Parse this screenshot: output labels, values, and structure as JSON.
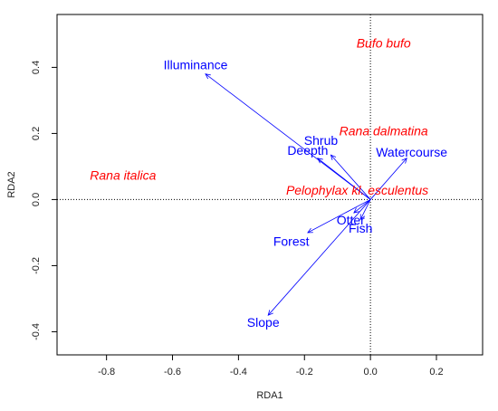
{
  "chart_data": {
    "type": "scatter",
    "subtype": "rda-biplot",
    "xlabel": "RDA1",
    "ylabel": "RDA2",
    "xlim": [
      -0.95,
      0.34
    ],
    "ylim": [
      -0.47,
      0.56
    ],
    "x_ticks": [
      {
        "value": -0.8,
        "label": "-0.8"
      },
      {
        "value": -0.6,
        "label": "-0.6"
      },
      {
        "value": -0.4,
        "label": "-0.4"
      },
      {
        "value": -0.2,
        "label": "-0.2"
      },
      {
        "value": 0.0,
        "label": "0.0"
      },
      {
        "value": 0.2,
        "label": "0.2"
      }
    ],
    "y_ticks": [
      {
        "value": -0.4,
        "label": "-0.4"
      },
      {
        "value": -0.2,
        "label": "-0.2"
      },
      {
        "value": 0.0,
        "label": "0.0"
      },
      {
        "value": 0.2,
        "label": "0.2"
      },
      {
        "value": 0.4,
        "label": "0.4"
      }
    ],
    "zero_lines": true,
    "grid": false,
    "species_color": "#ff0000",
    "vector_color": "#0000ff",
    "species": [
      {
        "name": "Bufo bufo",
        "x": 0.04,
        "y": 0.47
      },
      {
        "name": "Rana dalmatina",
        "x": 0.04,
        "y": 0.205
      },
      {
        "name": "Rana italica",
        "x": -0.75,
        "y": 0.07
      },
      {
        "name": "Pelophylax kl. esculentus",
        "x": -0.04,
        "y": 0.025
      }
    ],
    "vectors": [
      {
        "name": "Illuminance",
        "x": -0.5,
        "y": 0.38,
        "label_x": -0.53,
        "label_y": 0.405
      },
      {
        "name": "Shrub",
        "x": -0.12,
        "y": 0.135,
        "label_x": -0.15,
        "label_y": 0.175
      },
      {
        "name": "Deepth",
        "x": -0.16,
        "y": 0.125,
        "label_x": -0.19,
        "label_y": 0.145
      },
      {
        "name": "Watercourse",
        "x": 0.11,
        "y": 0.125,
        "label_x": 0.125,
        "label_y": 0.14
      },
      {
        "name": "Otter",
        "x": -0.05,
        "y": -0.04,
        "label_x": -0.06,
        "label_y": -0.065
      },
      {
        "name": "Fish",
        "x": -0.03,
        "y": -0.06,
        "label_x": -0.03,
        "label_y": -0.09
      },
      {
        "name": "Forest",
        "x": -0.19,
        "y": -0.1,
        "label_x": -0.24,
        "label_y": -0.13
      },
      {
        "name": "Slope",
        "x": -0.31,
        "y": -0.35,
        "label_x": -0.325,
        "label_y": -0.375
      }
    ]
  }
}
